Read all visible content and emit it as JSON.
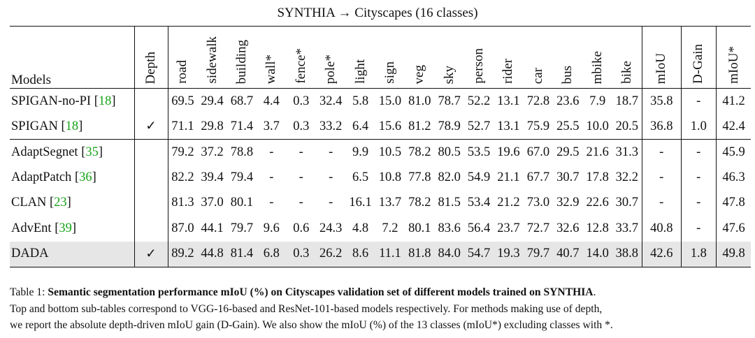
{
  "title": "SYNTHIA → Cityscapes (16 classes)",
  "headers": {
    "models": "Models",
    "depth": "Depth",
    "classes": [
      "road",
      "sidewalk",
      "building",
      "wall*",
      "fence*",
      "pole*",
      "light",
      "sign",
      "veg",
      "sky",
      "person",
      "rider",
      "car",
      "bus",
      "mbike",
      "bike"
    ],
    "miou": "mIoU",
    "dgain": "D-Gain",
    "miou13": "mIoU*"
  },
  "rows": [
    {
      "name": "SPIGAN-no-PI",
      "ref": "18",
      "depth": "",
      "values": [
        "69.5",
        "29.4",
        "68.7",
        "4.4",
        "0.3",
        "32.4",
        "5.8",
        "15.0",
        "81.0",
        "78.7",
        "52.2",
        "13.1",
        "72.8",
        "23.6",
        "7.9",
        "18.7"
      ],
      "miou": "35.8",
      "dgain": "-",
      "miou13": "41.2"
    },
    {
      "name": "SPIGAN",
      "ref": "18",
      "depth": "✓",
      "values": [
        "71.1",
        "29.8",
        "71.4",
        "3.7",
        "0.3",
        "33.2",
        "6.4",
        "15.6",
        "81.2",
        "78.9",
        "52.7",
        "13.1",
        "75.9",
        "25.5",
        "10.0",
        "20.5"
      ],
      "miou": "36.8",
      "dgain": "1.0",
      "miou13": "42.4"
    },
    {
      "name": "AdaptSegnet",
      "ref": "35",
      "depth": "",
      "values": [
        "79.2",
        "37.2",
        "78.8",
        "-",
        "-",
        "-",
        "9.9",
        "10.5",
        "78.2",
        "80.5",
        "53.5",
        "19.6",
        "67.0",
        "29.5",
        "21.6",
        "31.3"
      ],
      "miou": "-",
      "dgain": "-",
      "miou13": "45.9"
    },
    {
      "name": "AdaptPatch",
      "ref": "36",
      "depth": "",
      "values": [
        "82.2",
        "39.4",
        "79.4",
        "-",
        "-",
        "-",
        "6.5",
        "10.8",
        "77.8",
        "82.0",
        "54.9",
        "21.1",
        "67.7",
        "30.7",
        "17.8",
        "32.2"
      ],
      "miou": "-",
      "dgain": "-",
      "miou13": "46.3"
    },
    {
      "name": "CLAN",
      "ref": "23",
      "depth": "",
      "values": [
        "81.3",
        "37.0",
        "80.1",
        "-",
        "-",
        "-",
        "16.1",
        "13.7",
        "78.2",
        "81.5",
        "53.4",
        "21.2",
        "73.0",
        "32.9",
        "22.6",
        "30.7"
      ],
      "miou": "-",
      "dgain": "-",
      "miou13": "47.8"
    },
    {
      "name": "AdvEnt",
      "ref": "39",
      "depth": "",
      "values": [
        "87.0",
        "44.1",
        "79.7",
        "9.6",
        "0.6",
        "24.3",
        "4.8",
        "7.2",
        "80.1",
        "83.6",
        "56.4",
        "23.7",
        "72.7",
        "32.6",
        "12.8",
        "33.7"
      ],
      "miou": "40.8",
      "dgain": "-",
      "miou13": "47.6"
    },
    {
      "name": "DADA",
      "ref": "",
      "depth": "✓",
      "values": [
        "89.2",
        "44.8",
        "81.4",
        "6.8",
        "0.3",
        "26.2",
        "8.6",
        "11.1",
        "81.8",
        "84.0",
        "54.7",
        "19.3",
        "79.7",
        "40.7",
        "14.0",
        "38.8"
      ],
      "miou": "42.6",
      "dgain": "1.8",
      "miou13": "49.8"
    }
  ],
  "caption": {
    "label": "Table 1:",
    "bold": "Semantic segmentation performance mIoU (%) on Cityscapes validation set of different models trained on SYNTHIA",
    "bold_end": ".",
    "line2": "Top and bottom sub-tables correspond to VGG-16-based and ResNet-101-based models respectively. For methods making use of depth,",
    "line3": "we report the absolute depth-driven mIoU gain (D-Gain). We also show the mIoU (%) of the 13 classes (mIoU*) excluding classes with *."
  }
}
